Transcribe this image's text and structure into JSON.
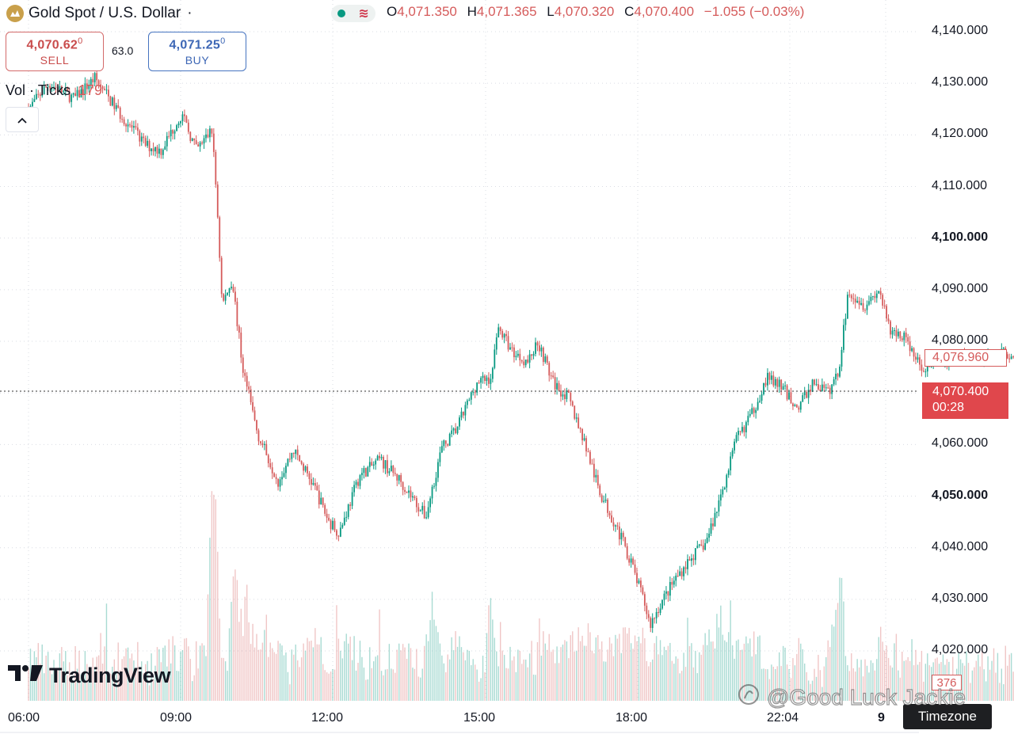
{
  "header": {
    "title": "Gold Spot / U.S. Dollar",
    "title_suffix": "·",
    "ohlc": {
      "o_label": "O",
      "o": "4,071.350",
      "h_label": "H",
      "h": "4,071.365",
      "l_label": "L",
      "l": "4,070.320",
      "c_label": "C",
      "c": "4,070.400",
      "change": "−1.055 (−0.03%)"
    }
  },
  "trade": {
    "sell_price_main": "4,070.62",
    "sell_price_sup": "0",
    "sell_label": "SELL",
    "spread": "63.0",
    "buy_price_main": "4,071.25",
    "buy_price_sup": "0",
    "buy_label": "BUY"
  },
  "volume_legend": {
    "label": "Vol · Ticks",
    "value": "179"
  },
  "price_axis": {
    "labels": [
      {
        "text": "4,140.000",
        "value": 4140,
        "bold": false
      },
      {
        "text": "4,130.000",
        "value": 4130,
        "bold": false
      },
      {
        "text": "4,120.000",
        "value": 4120,
        "bold": false
      },
      {
        "text": "4,110.000",
        "value": 4110,
        "bold": false
      },
      {
        "text": "4,100.000",
        "value": 4100,
        "bold": true
      },
      {
        "text": "4,090.000",
        "value": 4090,
        "bold": false
      },
      {
        "text": "4,080.000",
        "value": 4080,
        "bold": false
      },
      {
        "text": "4,060.000",
        "value": 4060,
        "bold": false
      },
      {
        "text": "4,050.000",
        "value": 4050,
        "bold": true
      },
      {
        "text": "4,040.000",
        "value": 4040,
        "bold": false
      },
      {
        "text": "4,030.000",
        "value": 4030,
        "bold": false
      },
      {
        "text": "4,020.000",
        "value": 4020,
        "bold": false
      }
    ],
    "current_marker": "4,076.960",
    "last_price": "4,070.400",
    "countdown": "00:28",
    "volume_marker": "376"
  },
  "time_axis": {
    "labels": [
      {
        "text": "06:00",
        "bold": false
      },
      {
        "text": "09:00",
        "bold": false
      },
      {
        "text": "12:00",
        "bold": false
      },
      {
        "text": "15:00",
        "bold": false
      },
      {
        "text": "18:00",
        "bold": false
      },
      {
        "text": "22:04",
        "bold": false
      },
      {
        "text": "9",
        "bold": true
      }
    ],
    "timezone_tooltip": "Timezone"
  },
  "branding": {
    "logo_text": "TradingView",
    "watermark": "@Good Luck Jackie"
  },
  "colors": {
    "up": "#089981",
    "down": "#d55b5b",
    "last_price_bg": "#e0474c",
    "grid": "#d9dce3"
  },
  "chart_data": {
    "type": "candlestick",
    "symbol": "Gold Spot / U.S. Dollar",
    "y_range": [
      4015,
      4145
    ],
    "y_ticks": [
      4020,
      4030,
      4040,
      4050,
      4060,
      4070,
      4080,
      4090,
      4100,
      4110,
      4120,
      4130,
      4140
    ],
    "x_ticks": [
      "06:00",
      "09:00",
      "12:00",
      "15:00",
      "18:00",
      "22:04",
      "9"
    ],
    "grid": true,
    "price_path": [
      {
        "x": 0.0,
        "y": 4125
      },
      {
        "x": 0.4,
        "y": 4130
      },
      {
        "x": 0.9,
        "y": 4127
      },
      {
        "x": 1.3,
        "y": 4131
      },
      {
        "x": 1.8,
        "y": 4124
      },
      {
        "x": 2.3,
        "y": 4118
      },
      {
        "x": 2.6,
        "y": 4117
      },
      {
        "x": 3.0,
        "y": 4124
      },
      {
        "x": 3.3,
        "y": 4117
      },
      {
        "x": 3.6,
        "y": 4121
      },
      {
        "x": 3.7,
        "y": 4107
      },
      {
        "x": 3.8,
        "y": 4087
      },
      {
        "x": 4.0,
        "y": 4092
      },
      {
        "x": 4.2,
        "y": 4075
      },
      {
        "x": 4.5,
        "y": 4062
      },
      {
        "x": 4.9,
        "y": 4053
      },
      {
        "x": 5.2,
        "y": 4059
      },
      {
        "x": 5.6,
        "y": 4052
      },
      {
        "x": 5.9,
        "y": 4045
      },
      {
        "x": 6.1,
        "y": 4043
      },
      {
        "x": 6.5,
        "y": 4054
      },
      {
        "x": 6.9,
        "y": 4057
      },
      {
        "x": 7.3,
        "y": 4053
      },
      {
        "x": 7.8,
        "y": 4046
      },
      {
        "x": 8.1,
        "y": 4059
      },
      {
        "x": 8.4,
        "y": 4063
      },
      {
        "x": 8.8,
        "y": 4072
      },
      {
        "x": 9.1,
        "y": 4073
      },
      {
        "x": 9.2,
        "y": 4083
      },
      {
        "x": 9.5,
        "y": 4078
      },
      {
        "x": 9.8,
        "y": 4076
      },
      {
        "x": 10.0,
        "y": 4080
      },
      {
        "x": 10.3,
        "y": 4072
      },
      {
        "x": 10.6,
        "y": 4069
      },
      {
        "x": 10.9,
        "y": 4061
      },
      {
        "x": 11.2,
        "y": 4051
      },
      {
        "x": 11.5,
        "y": 4045
      },
      {
        "x": 11.8,
        "y": 4038
      },
      {
        "x": 12.1,
        "y": 4029
      },
      {
        "x": 12.2,
        "y": 4025
      },
      {
        "x": 12.4,
        "y": 4029
      },
      {
        "x": 12.7,
        "y": 4034
      },
      {
        "x": 13.0,
        "y": 4038
      },
      {
        "x": 13.3,
        "y": 4041
      },
      {
        "x": 13.5,
        "y": 4047
      },
      {
        "x": 13.7,
        "y": 4054
      },
      {
        "x": 13.9,
        "y": 4061
      },
      {
        "x": 14.2,
        "y": 4066
      },
      {
        "x": 14.5,
        "y": 4073
      },
      {
        "x": 14.8,
        "y": 4071
      },
      {
        "x": 15.1,
        "y": 4067
      },
      {
        "x": 15.4,
        "y": 4072
      },
      {
        "x": 15.7,
        "y": 4070
      },
      {
        "x": 15.9,
        "y": 4074
      },
      {
        "x": 16.1,
        "y": 4090
      },
      {
        "x": 16.4,
        "y": 4087
      },
      {
        "x": 16.7,
        "y": 4090
      },
      {
        "x": 16.9,
        "y": 4082
      },
      {
        "x": 17.2,
        "y": 4081
      },
      {
        "x": 17.5,
        "y": 4075
      },
      {
        "x": 17.9,
        "y": 4076
      },
      {
        "x": 18.3,
        "y": 4077
      },
      {
        "x": 18.7,
        "y": 4076
      },
      {
        "x": 19.1,
        "y": 4078
      },
      {
        "x": 19.5,
        "y": 4077
      },
      {
        "x": 19.9,
        "y": 4074
      },
      {
        "x": 20.2,
        "y": 4079
      },
      {
        "x": 20.5,
        "y": 4089
      },
      {
        "x": 20.7,
        "y": 4080
      },
      {
        "x": 20.9,
        "y": 4078
      },
      {
        "x": 21.1,
        "y": 4074
      },
      {
        "x": 21.4,
        "y": 4077
      }
    ]
  }
}
